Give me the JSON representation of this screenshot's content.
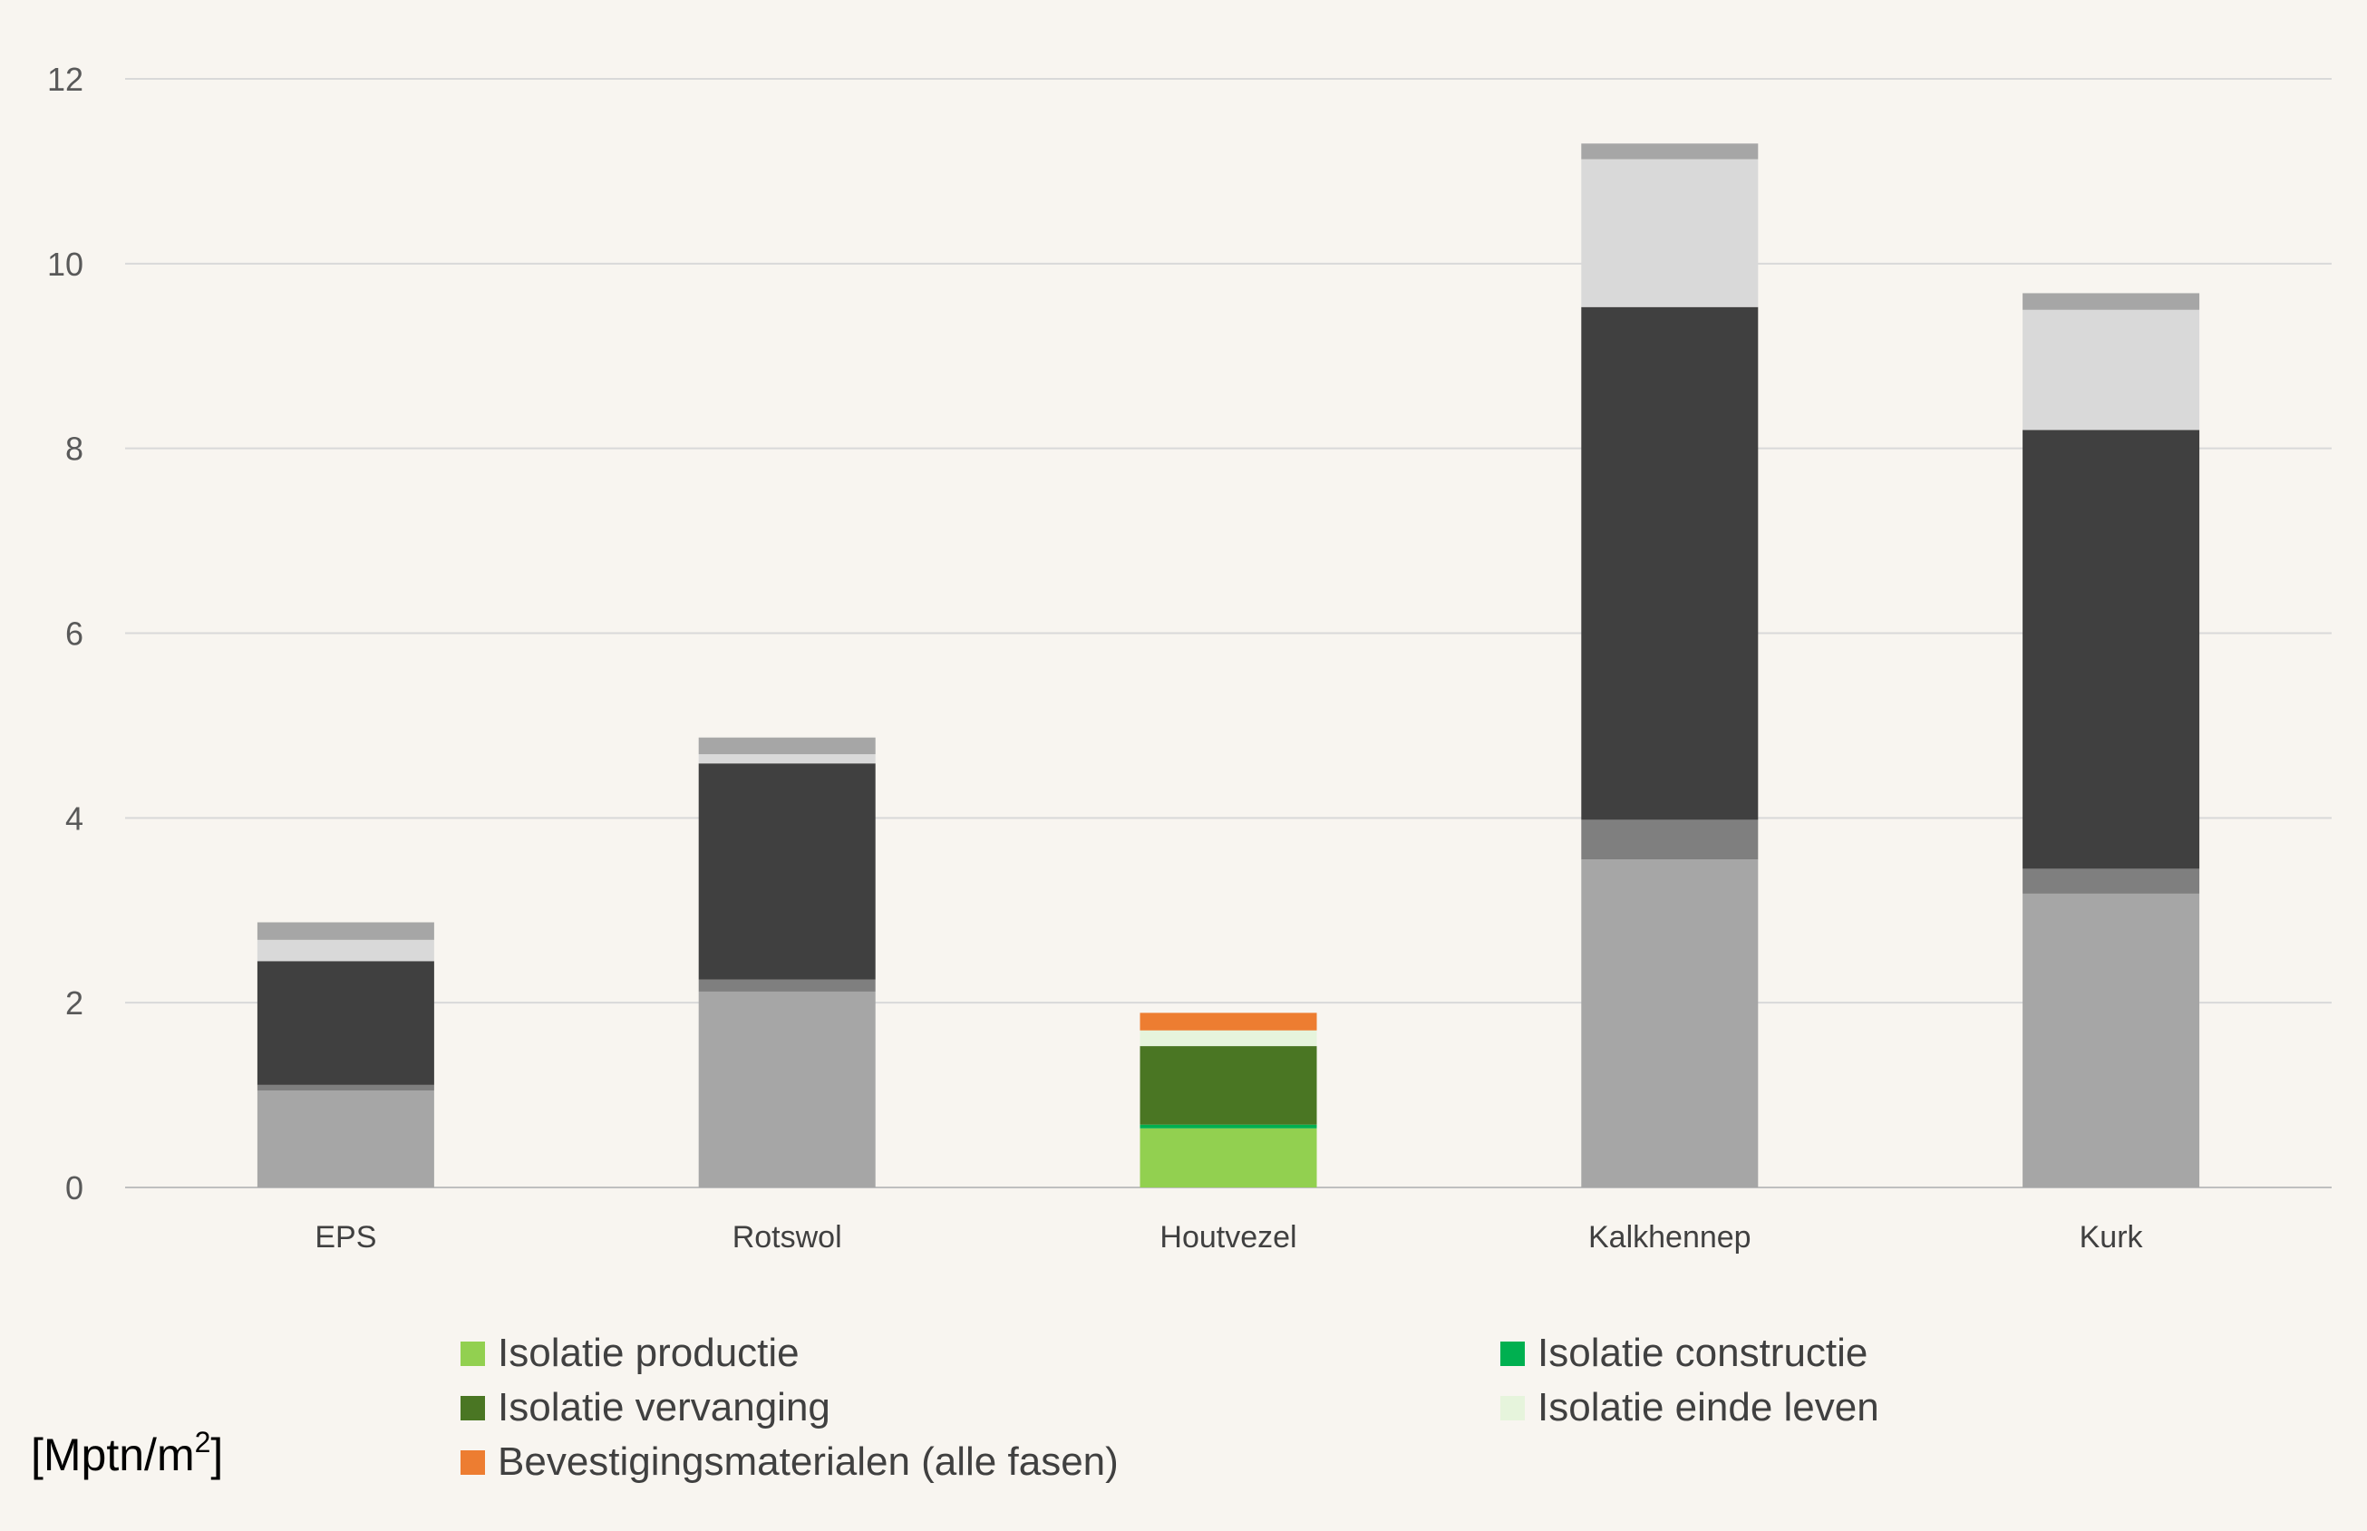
{
  "unit_label": {
    "prefix": "[Mptn/m",
    "sup": "2",
    "suffix": "]"
  },
  "chart_data": {
    "type": "bar",
    "stacked": true,
    "categories": [
      "EPS",
      "Rotswol",
      "Houtvezel",
      "Kalkhennep",
      "Kurk"
    ],
    "ylim": [
      0,
      12
    ],
    "yticks": [
      0,
      2,
      4,
      6,
      8,
      10,
      12
    ],
    "grid": true,
    "legend_position": "bottom",
    "series": [
      {
        "name": "Isolatie productie",
        "colors": [
          "#a6a6a6",
          "#a6a6a6",
          "#92d050",
          "#a6a6a6",
          "#a6a6a6"
        ],
        "values": [
          1.05,
          2.12,
          0.64,
          3.55,
          3.18
        ]
      },
      {
        "name": "Isolatie constructie",
        "colors": [
          "#7f7f7f",
          "#7f7f7f",
          "#00b050",
          "#7f7f7f",
          "#7f7f7f"
        ],
        "values": [
          0.06,
          0.13,
          0.04,
          0.43,
          0.27
        ]
      },
      {
        "name": "Isolatie vervanging",
        "colors": [
          "#404040",
          "#404040",
          "#4a7623",
          "#404040",
          "#404040"
        ],
        "values": [
          1.34,
          2.34,
          0.85,
          5.55,
          4.75
        ]
      },
      {
        "name": "Isolatie einde leven",
        "colors": [
          "#d9d9d9",
          "#d9d9d9",
          "#e6f4dc",
          "#d9d9d9",
          "#d9d9d9"
        ],
        "values": [
          0.23,
          0.1,
          0.17,
          1.6,
          1.3
        ]
      },
      {
        "name": "Bevestigingsmaterialen (alle fasen)",
        "colors": [
          "#a6a6a6",
          "#a6a6a6",
          "#ed7d31",
          "#a6a6a6",
          "#a6a6a6"
        ],
        "values": [
          0.19,
          0.18,
          0.19,
          0.17,
          0.18
        ]
      }
    ],
    "legend": [
      {
        "label": "Isolatie productie",
        "color": "#92d050"
      },
      {
        "label": "Isolatie constructie",
        "color": "#00b050"
      },
      {
        "label": "Isolatie vervanging",
        "color": "#4a7623"
      },
      {
        "label": "Isolatie einde leven",
        "color": "#e6f4dc"
      },
      {
        "label": "Bevestigingsmaterialen (alle fasen)",
        "color": "#ed7d31"
      }
    ]
  }
}
